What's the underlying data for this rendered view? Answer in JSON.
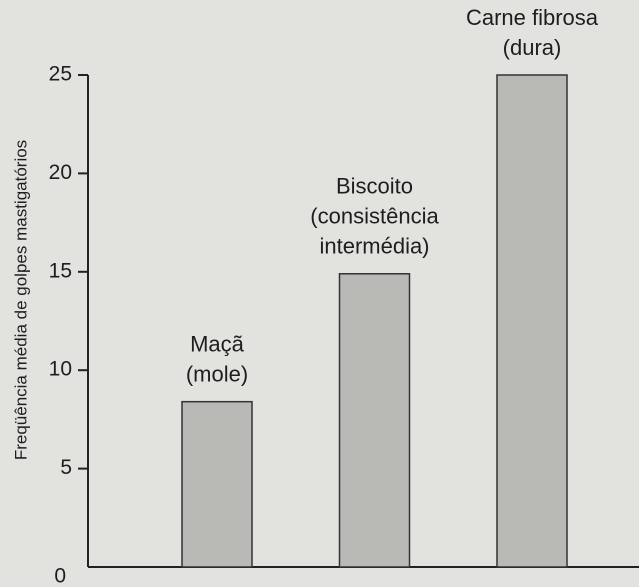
{
  "chart_data": {
    "type": "bar",
    "y_label": "Freqüência média de golpes mastigatórios",
    "categories": [
      [
        "Maçã",
        "(mole)"
      ],
      [
        "Biscoito",
        "(consistência",
        "intermédia)"
      ],
      [
        "Carne fibrosa",
        "(dura)"
      ]
    ],
    "values": [
      8.4,
      14.9,
      25.0
    ],
    "color": "#b9b9b5",
    "ylim": [
      0,
      25
    ],
    "yticks": [
      0,
      5,
      10,
      15,
      20,
      25
    ],
    "grid": false
  }
}
